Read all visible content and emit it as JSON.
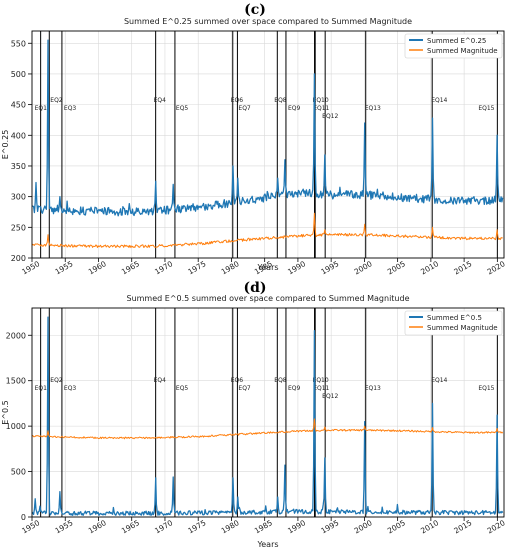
{
  "panels": [
    {
      "label": "(c)"
    },
    {
      "label": "(d)"
    }
  ],
  "colors": {
    "series1": "#1f77b4",
    "series2": "#ff7f0e",
    "event_line": "#000000",
    "grid": "#d9d9d9"
  },
  "chart_data": [
    {
      "type": "line",
      "title": "Summed E^0.25 summed over space compared to Summed Magnitude",
      "xlabel": "Years",
      "ylabel": "E^0.25",
      "xlim": [
        1950,
        2021
      ],
      "ylim": [
        200,
        570
      ],
      "xticks": [
        "1950",
        "1955",
        "1960",
        "1965",
        "1970",
        "1975",
        "1980",
        "1985",
        "1990",
        "1995",
        "2000",
        "2005",
        "2010",
        "2015",
        "2020"
      ],
      "yticks": [
        "200",
        "250",
        "300",
        "350",
        "400",
        "450",
        "500",
        "550"
      ],
      "grid": true,
      "legend_position": "top-right",
      "legend": [
        "Summed E^0.25",
        "Summed Magnitude"
      ],
      "series": [
        {
          "name": "Summed E^0.25",
          "baseline": [
            [
              1950,
              280
            ],
            [
              1955,
              278
            ],
            [
              1960,
              276
            ],
            [
              1965,
              275
            ],
            [
              1970,
              278
            ],
            [
              1975,
              283
            ],
            [
              1980,
              290
            ],
            [
              1985,
              298
            ],
            [
              1988,
              304
            ],
            [
              1991,
              307
            ],
            [
              1994,
              302
            ],
            [
              1997,
              304
            ],
            [
              2000,
              303
            ],
            [
              2003,
              301
            ],
            [
              2006,
              298
            ],
            [
              2010,
              296
            ],
            [
              2015,
              293
            ],
            [
              2020,
              294
            ]
          ],
          "spikes": [
            [
              1950.6,
              323
            ],
            [
              1952.4,
              555
            ],
            [
              1954.2,
              300
            ],
            [
              1968.6,
              325
            ],
            [
              1971.3,
              320
            ],
            [
              1980.2,
              350
            ],
            [
              1981.0,
              330
            ],
            [
              1987.0,
              330
            ],
            [
              1988.0,
              360
            ],
            [
              1992.5,
              500
            ],
            [
              1994.0,
              368
            ],
            [
              2000.1,
              420
            ],
            [
              2010.2,
              428
            ],
            [
              2020.0,
              400
            ]
          ]
        },
        {
          "name": "Summed Magnitude",
          "baseline": [
            [
              1950,
              222
            ],
            [
              1955,
              220
            ],
            [
              1960,
              219
            ],
            [
              1965,
              219
            ],
            [
              1970,
              220
            ],
            [
              1975,
              223
            ],
            [
              1980,
              228
            ],
            [
              1985,
              232
            ],
            [
              1990,
              236
            ],
            [
              1995,
              238
            ],
            [
              2000,
              238
            ],
            [
              2005,
              236
            ],
            [
              2010,
              234
            ],
            [
              2015,
              232
            ],
            [
              2020,
              232
            ]
          ],
          "spikes": [
            [
              1952.4,
              238
            ],
            [
              1992.5,
              273
            ],
            [
              1994.0,
              246
            ],
            [
              2000.1,
              255
            ],
            [
              2010.2,
              250
            ],
            [
              2020.0,
              246
            ]
          ]
        }
      ],
      "events": [
        {
          "name": "EQ1",
          "year": 1951.3
        },
        {
          "name": "EQ2",
          "year": 1952.6
        },
        {
          "name": "EQ3",
          "year": 1954.5
        },
        {
          "name": "EQ4",
          "year": 1968.6
        },
        {
          "name": "EQ5",
          "year": 1971.5
        },
        {
          "name": "EQ6",
          "year": 1980.2
        },
        {
          "name": "EQ7",
          "year": 1980.9
        },
        {
          "name": "EQ8",
          "year": 1986.9
        },
        {
          "name": "EQ9",
          "year": 1988.2
        },
        {
          "name": "EQ10",
          "year": 1992.5
        },
        {
          "name": "EQ11",
          "year": 1992.6
        },
        {
          "name": "EQ12",
          "year": 1994.1
        },
        {
          "name": "EQ13",
          "year": 2000.2
        },
        {
          "name": "EQ14",
          "year": 2010.2
        },
        {
          "name": "EQ15",
          "year": 2020.0
        }
      ]
    },
    {
      "type": "line",
      "title": "Summed E^0.5 summed over space compared to Summed Magnitude",
      "xlabel": "Years",
      "ylabel": "E^0.5",
      "xlim": [
        1950,
        2021
      ],
      "ylim": [
        0,
        2300
      ],
      "xticks": [
        "1950",
        "1955",
        "1960",
        "1965",
        "1970",
        "1975",
        "1980",
        "1985",
        "1990",
        "1995",
        "2000",
        "2005",
        "2010",
        "2015",
        "2020"
      ],
      "yticks": [
        "0",
        "500",
        "1000",
        "1500",
        "2000"
      ],
      "grid": true,
      "legend_position": "top-right",
      "legend": [
        "Summed E^0.5",
        "Summed Magnitude"
      ],
      "series": [
        {
          "name": "Summed E^0.5",
          "baseline": [
            [
              1950,
              45
            ],
            [
              1960,
              40
            ],
            [
              1970,
              42
            ],
            [
              1980,
              50
            ],
            [
              1990,
              60
            ],
            [
              2000,
              55
            ],
            [
              2010,
              50
            ],
            [
              2020,
              48
            ]
          ],
          "spikes": [
            [
              1950.5,
              200
            ],
            [
              1951.2,
              120
            ],
            [
              1952.4,
              2200
            ],
            [
              1954.2,
              280
            ],
            [
              1968.6,
              430
            ],
            [
              1971.3,
              440
            ],
            [
              1980.2,
              430
            ],
            [
              1981.0,
              220
            ],
            [
              1987.0,
              220
            ],
            [
              1988.0,
              570
            ],
            [
              1992.5,
              2050
            ],
            [
              1994.0,
              650
            ],
            [
              2000.1,
              1050
            ],
            [
              2010.2,
              1250
            ],
            [
              2020.0,
              1120
            ]
          ]
        },
        {
          "name": "Summed Magnitude",
          "baseline": [
            [
              1950,
              890
            ],
            [
              1955,
              880
            ],
            [
              1960,
              870
            ],
            [
              1965,
              870
            ],
            [
              1970,
              875
            ],
            [
              1975,
              885
            ],
            [
              1980,
              905
            ],
            [
              1985,
              925
            ],
            [
              1990,
              945
            ],
            [
              1995,
              955
            ],
            [
              2000,
              955
            ],
            [
              2005,
              950
            ],
            [
              2010,
              940
            ],
            [
              2015,
              930
            ],
            [
              2020,
              930
            ]
          ],
          "spikes": [
            [
              1952.4,
              950
            ],
            [
              1992.5,
              1080
            ],
            [
              1994.0,
              990
            ],
            [
              2000.1,
              1000
            ],
            [
              2010.2,
              985
            ],
            [
              2020.0,
              975
            ]
          ]
        }
      ],
      "events": [
        {
          "name": "EQ1",
          "year": 1951.3
        },
        {
          "name": "EQ2",
          "year": 1952.6
        },
        {
          "name": "EQ3",
          "year": 1954.5
        },
        {
          "name": "EQ4",
          "year": 1968.6
        },
        {
          "name": "EQ5",
          "year": 1971.5
        },
        {
          "name": "EQ6",
          "year": 1980.2
        },
        {
          "name": "EQ7",
          "year": 1980.9
        },
        {
          "name": "EQ8",
          "year": 1986.9
        },
        {
          "name": "EQ9",
          "year": 1988.2
        },
        {
          "name": "EQ10",
          "year": 1992.5
        },
        {
          "name": "EQ11",
          "year": 1992.6
        },
        {
          "name": "EQ12",
          "year": 1994.1
        },
        {
          "name": "EQ13",
          "year": 2000.2
        },
        {
          "name": "EQ14",
          "year": 2010.2
        },
        {
          "name": "EQ15",
          "year": 2020.0
        }
      ]
    }
  ]
}
